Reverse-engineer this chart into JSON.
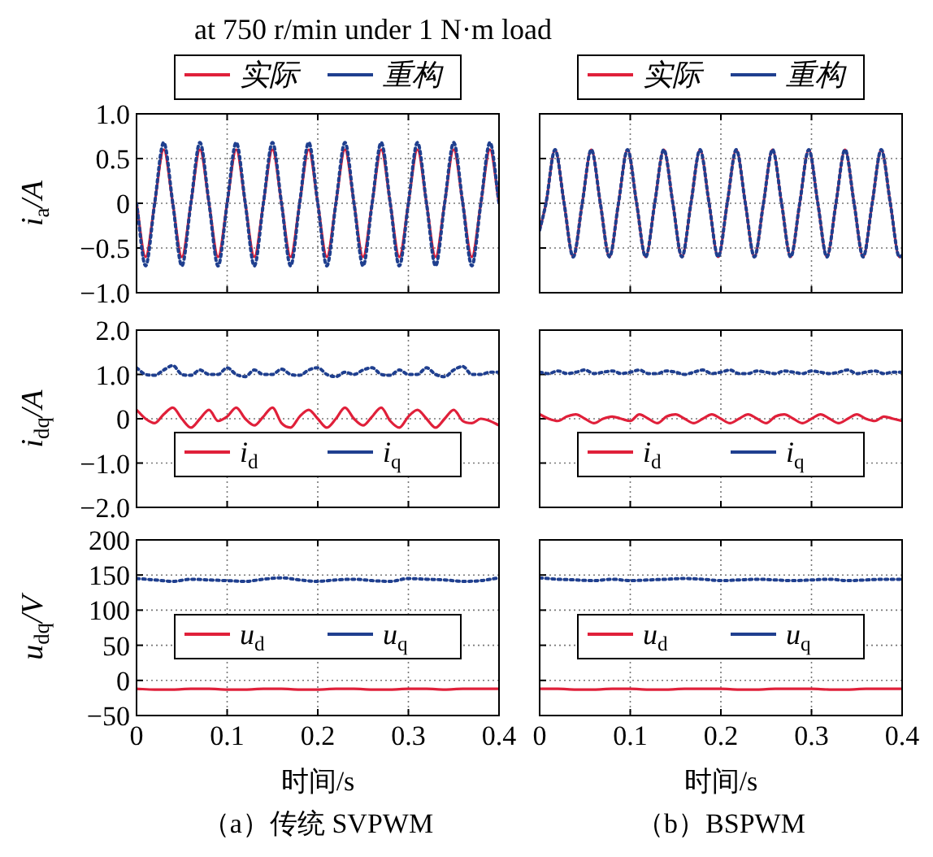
{
  "chart_data": [
    {
      "type": "line",
      "title": "at 750 r/min under 1 N·m load",
      "ylabel": "i$_{a}$/A",
      "xlim": [
        0,
        0.4
      ],
      "xticks": [
        0,
        0.1,
        0.2,
        0.3,
        0.4
      ],
      "ylim": [
        -1,
        1
      ],
      "yticks": [
        {
          "value": 1,
          "label": "1.0"
        },
        {
          "value": 0.5,
          "label": "0.5"
        },
        0,
        {
          "value": -0.5,
          "label": "−0.5"
        },
        {
          "value": -1,
          "label": "−1.0"
        }
      ],
      "tick_labels": "y",
      "grid": true,
      "legend": "top",
      "x": [
        0,
        0.01,
        0.02,
        0.03,
        0.04,
        0.05,
        0.06,
        0.07,
        0.08,
        0.09,
        0.1,
        0.11,
        0.12,
        0.13,
        0.14,
        0.15,
        0.16,
        0.17,
        0.18,
        0.19,
        0.2,
        0.21,
        0.22,
        0.23,
        0.24,
        0.25,
        0.26,
        0.27,
        0.28,
        0.29,
        0.3,
        0.31,
        0.32,
        0.33,
        0.34,
        0.35,
        0.36,
        0.37,
        0.38,
        0.39,
        0.4
      ],
      "series": [
        {
          "name": "实际",
          "color": "#e0203a",
          "line_style": "solid",
          "values": [
            0,
            -0.6,
            0,
            0.6,
            0,
            -0.6,
            0,
            0.6,
            0,
            -0.6,
            0,
            0.6,
            0,
            -0.6,
            0,
            0.6,
            0,
            -0.6,
            0,
            0.6,
            0,
            -0.6,
            0,
            0.6,
            0,
            -0.6,
            0,
            0.6,
            0,
            -0.6,
            0,
            0.6,
            0,
            -0.6,
            0,
            0.6,
            0,
            -0.6,
            0,
            0.6,
            0
          ]
        },
        {
          "name": "重构",
          "color": "#1f3f8f",
          "line_style": "dotted",
          "values": [
            0,
            -0.7,
            0,
            0.68,
            0,
            -0.7,
            0,
            0.68,
            0,
            -0.7,
            0,
            0.68,
            0,
            -0.7,
            0,
            0.68,
            0,
            -0.7,
            0,
            0.68,
            0,
            -0.7,
            0,
            0.68,
            0,
            -0.7,
            0,
            0.68,
            0,
            -0.7,
            0,
            0.68,
            0,
            -0.7,
            0,
            0.68,
            0,
            -0.7,
            0,
            0.68,
            0
          ]
        }
      ]
    },
    {
      "type": "line",
      "xlim": [
        0,
        0.4
      ],
      "xticks": [
        0,
        0.1,
        0.2,
        0.3,
        0.4
      ],
      "ylim": [
        -1,
        1
      ],
      "yticks": [
        1,
        0.5,
        0,
        -0.5,
        -1
      ],
      "tick_labels": false,
      "grid": true,
      "legend": "top",
      "x": [
        0,
        0.007,
        0.017,
        0.027,
        0.037,
        0.047,
        0.057,
        0.067,
        0.077,
        0.087,
        0.097,
        0.107,
        0.117,
        0.127,
        0.137,
        0.147,
        0.157,
        0.167,
        0.177,
        0.187,
        0.197,
        0.207,
        0.217,
        0.227,
        0.237,
        0.247,
        0.257,
        0.267,
        0.277,
        0.287,
        0.297,
        0.307,
        0.317,
        0.327,
        0.337,
        0.347,
        0.357,
        0.367,
        0.377,
        0.387,
        0.397,
        0.4
      ],
      "series": [
        {
          "name": "实际",
          "color": "#e0203a",
          "line_style": "solid",
          "values": [
            -0.3,
            0,
            0.6,
            0,
            -0.6,
            0,
            0.6,
            0,
            -0.6,
            0,
            0.6,
            0,
            -0.6,
            0,
            0.6,
            0,
            -0.6,
            0,
            0.6,
            0,
            -0.6,
            0,
            0.6,
            0,
            -0.6,
            0,
            0.6,
            0,
            -0.6,
            0,
            0.6,
            0,
            -0.6,
            0,
            0.6,
            0,
            -0.6,
            0,
            0.6,
            0,
            -0.6,
            -0.58
          ]
        },
        {
          "name": "重构",
          "color": "#1f3f8f",
          "line_style": "dotted",
          "values": [
            -0.3,
            0,
            0.6,
            0,
            -0.6,
            0,
            0.6,
            0,
            -0.6,
            0,
            0.6,
            0,
            -0.6,
            0,
            0.6,
            0,
            -0.6,
            0,
            0.6,
            0,
            -0.6,
            0,
            0.6,
            0,
            -0.6,
            0,
            0.6,
            0,
            -0.6,
            0,
            0.6,
            0,
            -0.6,
            0,
            0.6,
            0,
            -0.6,
            0,
            0.6,
            0,
            -0.6,
            -0.58
          ]
        }
      ]
    },
    {
      "type": "line",
      "ylabel": "i$_{dq}$/A",
      "xlim": [
        0,
        0.4
      ],
      "xticks": [
        0,
        0.1,
        0.2,
        0.3,
        0.4
      ],
      "ylim": [
        -2,
        2
      ],
      "yticks": [
        {
          "value": 2,
          "label": "2.0"
        },
        {
          "value": 1,
          "label": "1.0"
        },
        0,
        {
          "value": -1,
          "label": "−1.0"
        },
        {
          "value": -2,
          "label": "−2.0"
        }
      ],
      "tick_labels": "y",
      "grid": true,
      "legend": "bottom",
      "x": [
        0,
        0.01,
        0.02,
        0.03,
        0.04,
        0.05,
        0.06,
        0.07,
        0.08,
        0.09,
        0.1,
        0.11,
        0.12,
        0.13,
        0.14,
        0.15,
        0.16,
        0.17,
        0.18,
        0.19,
        0.2,
        0.21,
        0.22,
        0.23,
        0.24,
        0.25,
        0.26,
        0.27,
        0.28,
        0.29,
        0.3,
        0.31,
        0.32,
        0.33,
        0.34,
        0.35,
        0.36,
        0.37,
        0.38,
        0.39,
        0.4
      ],
      "series": [
        {
          "name": "i$_{d}$",
          "color": "#e0203a",
          "line_style": "solid",
          "values": [
            0.2,
            0,
            -0.1,
            0.1,
            0.25,
            0,
            -0.2,
            0,
            0.2,
            -0.05,
            0.05,
            0.25,
            0,
            -0.15,
            0.05,
            0.25,
            -0.1,
            -0.2,
            0.05,
            0.2,
            0,
            -0.2,
            0,
            0.25,
            0,
            -0.15,
            0.05,
            0.25,
            -0.05,
            -0.2,
            0.05,
            0.2,
            0,
            -0.2,
            0,
            0.2,
            -0.05,
            -0.1,
            0,
            -0.05,
            -0.15
          ]
        },
        {
          "name": "i$_{q}$",
          "color": "#1f3f8f",
          "line_style": "dotted",
          "values": [
            1.15,
            1.0,
            0.98,
            1.1,
            1.2,
            1.0,
            0.98,
            1.1,
            1.0,
            1.0,
            1.15,
            1.0,
            0.95,
            1.1,
            1.0,
            1.0,
            1.12,
            1.0,
            0.98,
            1.1,
            1.15,
            1.0,
            0.95,
            1.05,
            1.0,
            1.1,
            1.15,
            1.0,
            0.98,
            1.1,
            1.0,
            1.0,
            1.15,
            1.0,
            0.95,
            1.1,
            1.18,
            1.0,
            1.0,
            1.05,
            1.05
          ]
        }
      ]
    },
    {
      "type": "line",
      "xlim": [
        0,
        0.4
      ],
      "xticks": [
        0,
        0.1,
        0.2,
        0.3,
        0.4
      ],
      "ylim": [
        -2,
        2
      ],
      "yticks": [
        2,
        1,
        0,
        -1,
        -2
      ],
      "tick_labels": false,
      "grid": true,
      "legend": "bottom",
      "x": [
        0,
        0.01,
        0.02,
        0.03,
        0.04,
        0.05,
        0.06,
        0.07,
        0.08,
        0.09,
        0.1,
        0.11,
        0.12,
        0.13,
        0.14,
        0.15,
        0.16,
        0.17,
        0.18,
        0.19,
        0.2,
        0.21,
        0.22,
        0.23,
        0.24,
        0.25,
        0.26,
        0.27,
        0.28,
        0.29,
        0.3,
        0.31,
        0.32,
        0.33,
        0.34,
        0.35,
        0.36,
        0.37,
        0.38,
        0.39,
        0.4
      ],
      "series": [
        {
          "name": "i$_{d}$",
          "color": "#e0203a",
          "line_style": "solid",
          "values": [
            0.1,
            0,
            -0.05,
            0.05,
            0.1,
            0,
            -0.1,
            0,
            0.05,
            0,
            -0.05,
            0.1,
            0,
            -0.1,
            0.05,
            0.1,
            0,
            -0.1,
            0,
            0.1,
            0,
            -0.1,
            0,
            0.1,
            0,
            -0.1,
            0.05,
            0.1,
            0,
            -0.1,
            0,
            0.1,
            0,
            -0.1,
            0,
            0.1,
            0,
            -0.05,
            0.05,
            0,
            -0.05
          ]
        },
        {
          "name": "i$_{q}$",
          "color": "#1f3f8f",
          "line_style": "dotted",
          "values": [
            1.05,
            1.02,
            1.08,
            1.02,
            1.05,
            1.1,
            1.02,
            1.05,
            1.08,
            1.02,
            1.05,
            1.1,
            1.02,
            1.02,
            1.08,
            1.05,
            1.0,
            1.05,
            1.1,
            1.02,
            1.05,
            1.1,
            1.02,
            1.02,
            1.08,
            1.05,
            1.02,
            1.08,
            1.05,
            1.02,
            1.08,
            1.05,
            1.02,
            1.05,
            1.1,
            1.02,
            1.05,
            1.08,
            1.02,
            1.05,
            1.05
          ]
        }
      ]
    },
    {
      "type": "line",
      "ylabel": "u$_{dq}$/V",
      "xlabel": "时间/s",
      "annotations": [
        "（a）传统 SVPWM"
      ],
      "xlim": [
        0,
        0.4
      ],
      "xticks": [
        0,
        0.1,
        0.2,
        0.3,
        0.4
      ],
      "ylim": [
        -50,
        200
      ],
      "yticks": [
        200,
        150,
        100,
        50,
        0,
        {
          "value": -50,
          "label": "−50"
        }
      ],
      "grid": true,
      "legend": "center",
      "x": [
        0,
        0.02,
        0.04,
        0.06,
        0.08,
        0.1,
        0.12,
        0.14,
        0.16,
        0.18,
        0.2,
        0.22,
        0.24,
        0.26,
        0.28,
        0.3,
        0.32,
        0.34,
        0.36,
        0.38,
        0.4
      ],
      "series": [
        {
          "name": "u$_{d}$",
          "color": "#e0203a",
          "line_style": "solid",
          "values": [
            -12,
            -13,
            -13,
            -12,
            -12,
            -13,
            -13,
            -12,
            -12,
            -13,
            -13,
            -12,
            -12,
            -13,
            -13,
            -12,
            -12,
            -13,
            -12,
            -12,
            -12
          ]
        },
        {
          "name": "u$_{q}$",
          "color": "#1f3f8f",
          "line_style": "dotted",
          "values": [
            145,
            143,
            141,
            144,
            143,
            142,
            141,
            144,
            146,
            143,
            141,
            143,
            144,
            142,
            141,
            145,
            144,
            143,
            141,
            142,
            146
          ]
        }
      ]
    },
    {
      "type": "line",
      "xlabel": "时间/s",
      "annotations": [
        "（b）BSPWM"
      ],
      "xlim": [
        0,
        0.4
      ],
      "xticks": [
        0,
        0.1,
        0.2,
        0.3,
        0.4
      ],
      "ylim": [
        -50,
        200
      ],
      "yticks": [
        200,
        150,
        100,
        50,
        0,
        -50
      ],
      "tick_labels": "x",
      "grid": true,
      "legend": "center",
      "x": [
        0,
        0.02,
        0.04,
        0.06,
        0.08,
        0.1,
        0.12,
        0.14,
        0.16,
        0.18,
        0.2,
        0.22,
        0.24,
        0.26,
        0.28,
        0.3,
        0.32,
        0.34,
        0.36,
        0.38,
        0.4
      ],
      "series": [
        {
          "name": "u$_{d}$",
          "color": "#e0203a",
          "line_style": "solid",
          "values": [
            -12,
            -12,
            -13,
            -13,
            -12,
            -12,
            -13,
            -13,
            -12,
            -12,
            -12,
            -13,
            -13,
            -12,
            -12,
            -12,
            -13,
            -13,
            -12,
            -12,
            -12
          ]
        },
        {
          "name": "u$_{q}$",
          "color": "#1f3f8f",
          "line_style": "dotted",
          "values": [
            146,
            144,
            143,
            142,
            144,
            142,
            143,
            144,
            145,
            144,
            142,
            143,
            144,
            143,
            142,
            143,
            144,
            142,
            143,
            144,
            144
          ]
        }
      ]
    }
  ]
}
